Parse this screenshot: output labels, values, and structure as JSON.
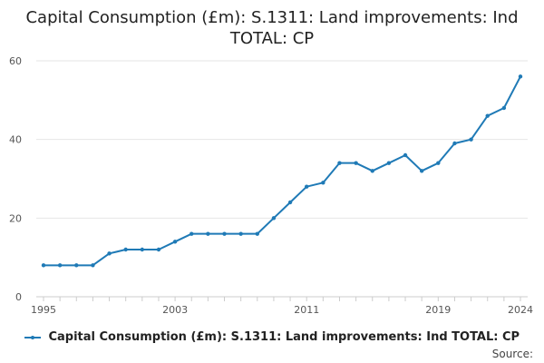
{
  "title_lines": [
    "Capital Consumption (£m): S.1311: Land improvements: Ind",
    "TOTAL: CP"
  ],
  "source_label": "Source:",
  "colors": {
    "series": "#1f7ab6",
    "grid": "#e6e6e6",
    "axis": "#cccccc",
    "tick_text": "#555555"
  },
  "chart_data": {
    "type": "line",
    "title": "Capital Consumption (£m): S.1311: Land improvements: Ind TOTAL: CP",
    "xlabel": "",
    "ylabel": "",
    "x": [
      1995,
      1996,
      1997,
      1998,
      1999,
      2000,
      2001,
      2002,
      2003,
      2004,
      2005,
      2006,
      2007,
      2008,
      2009,
      2010,
      2011,
      2012,
      2013,
      2014,
      2015,
      2016,
      2017,
      2018,
      2019,
      2020,
      2021,
      2022,
      2023,
      2024
    ],
    "series": [
      {
        "name": "Capital Consumption (£m): S.1311: Land improvements: Ind TOTAL: CP",
        "values": [
          8,
          8,
          8,
          8,
          11,
          12,
          12,
          12,
          14,
          16,
          16,
          16,
          16,
          16,
          20,
          24,
          28,
          29,
          34,
          34,
          32,
          34,
          36,
          32,
          34,
          39,
          40,
          46,
          48,
          56
        ]
      }
    ],
    "xlim": [
      1995,
      2024
    ],
    "ylim": [
      0,
      60
    ],
    "x_ticks": [
      1995,
      2003,
      2011,
      2019,
      2024
    ],
    "y_ticks": [
      0,
      20,
      40,
      60
    ],
    "grid": "horizontal",
    "legend": "bottom-center"
  }
}
